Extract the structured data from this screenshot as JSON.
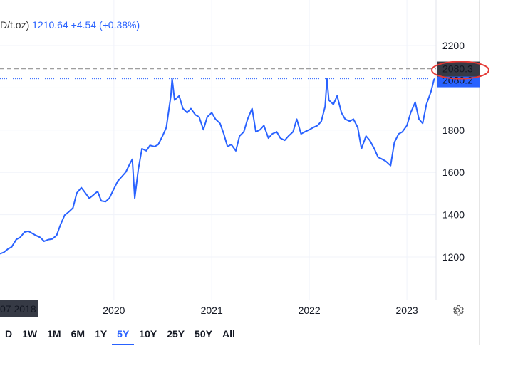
{
  "legend": {
    "symbol_suffix": "D/t.oz)",
    "price": "1210.64",
    "change": "+4.54 (+0.38%)"
  },
  "price_labels": {
    "reference_line_value": "2080.3",
    "last_value": "2080.2",
    "hover_date": "07 2018"
  },
  "range_buttons": [
    "D",
    "1W",
    "1M",
    "6M",
    "1Y",
    "5Y",
    "10Y",
    "25Y",
    "50Y",
    "All"
  ],
  "active_range": "5Y",
  "colors": {
    "series": "#2962ff",
    "reference_line": "#9e9e9e",
    "highlight_circle": "#e53935",
    "label_dark": "#363a45"
  },
  "chart_data": {
    "type": "line",
    "title": "",
    "xlabel": "",
    "ylabel": "",
    "xlim": [
      "2018-11-01",
      "2023-04-20"
    ],
    "ylim": [
      1120,
      2260
    ],
    "x_ticks": [
      "2020",
      "2021",
      "2022",
      "2023"
    ],
    "y_ticks": [
      "1200",
      "1400",
      "1600",
      "1800",
      "2200"
    ],
    "reference_value": 2080.3,
    "last_value": 2080.2,
    "series": [
      {
        "x": [
          "2018-11-01",
          "2018-11-15",
          "2018-12-01",
          "2018-12-15",
          "2019-01-01",
          "2019-01-15",
          "2019-02-01",
          "2019-02-15",
          "2019-03-01",
          "2019-03-15",
          "2019-04-01",
          "2019-04-15",
          "2019-05-01",
          "2019-05-15",
          "2019-06-01",
          "2019-06-15",
          "2019-07-01",
          "2019-07-15",
          "2019-08-01",
          "2019-08-15",
          "2019-09-01",
          "2019-09-15",
          "2019-10-01",
          "2019-10-15",
          "2019-11-01",
          "2019-11-15",
          "2019-12-01",
          "2019-12-15",
          "2020-01-01",
          "2020-01-15",
          "2020-02-01",
          "2020-02-15",
          "2020-03-01",
          "2020-03-10",
          "2020-03-19",
          "2020-04-01",
          "2020-04-15",
          "2020-05-01",
          "2020-05-15",
          "2020-06-01",
          "2020-06-15",
          "2020-07-01",
          "2020-07-15",
          "2020-08-01",
          "2020-08-06",
          "2020-08-15",
          "2020-09-01",
          "2020-09-15",
          "2020-10-01",
          "2020-10-15",
          "2020-11-01",
          "2020-11-15",
          "2020-12-01",
          "2020-12-15",
          "2021-01-01",
          "2021-01-15",
          "2021-02-01",
          "2021-02-15",
          "2021-03-01",
          "2021-03-15",
          "2021-04-01",
          "2021-04-15",
          "2021-05-01",
          "2021-05-15",
          "2021-06-01",
          "2021-06-15",
          "2021-07-01",
          "2021-07-15",
          "2021-08-01",
          "2021-08-15",
          "2021-09-01",
          "2021-09-15",
          "2021-10-01",
          "2021-10-15",
          "2021-11-01",
          "2021-11-15",
          "2021-12-01",
          "2021-12-15",
          "2022-01-01",
          "2022-01-15",
          "2022-02-01",
          "2022-02-15",
          "2022-03-01",
          "2022-03-08",
          "2022-03-15",
          "2022-04-01",
          "2022-04-15",
          "2022-05-01",
          "2022-05-15",
          "2022-06-01",
          "2022-06-15",
          "2022-07-01",
          "2022-07-15",
          "2022-08-01",
          "2022-08-15",
          "2022-09-01",
          "2022-09-15",
          "2022-10-01",
          "2022-10-15",
          "2022-11-01",
          "2022-11-15",
          "2022-12-01",
          "2022-12-15",
          "2023-01-01",
          "2023-01-15",
          "2023-02-01",
          "2023-02-15",
          "2023-03-01",
          "2023-03-15",
          "2023-04-01",
          "2023-04-13"
        ],
        "y": [
          1215,
          1222,
          1238,
          1248,
          1283,
          1292,
          1318,
          1322,
          1312,
          1302,
          1292,
          1274,
          1282,
          1285,
          1302,
          1352,
          1398,
          1412,
          1432,
          1502,
          1528,
          1505,
          1477,
          1492,
          1510,
          1465,
          1462,
          1478,
          1522,
          1558,
          1582,
          1602,
          1642,
          1662,
          1478,
          1612,
          1712,
          1702,
          1728,
          1722,
          1732,
          1772,
          1812,
          1962,
          2042,
          1942,
          1962,
          1902,
          1882,
          1902,
          1872,
          1862,
          1802,
          1862,
          1882,
          1852,
          1832,
          1782,
          1722,
          1732,
          1702,
          1772,
          1792,
          1852,
          1902,
          1792,
          1802,
          1822,
          1762,
          1782,
          1792,
          1762,
          1752,
          1772,
          1792,
          1852,
          1782,
          1792,
          1802,
          1812,
          1822,
          1842,
          1912,
          2042,
          1942,
          1922,
          1962,
          1882,
          1852,
          1842,
          1852,
          1812,
          1712,
          1772,
          1752,
          1712,
          1672,
          1662,
          1652,
          1632,
          1742,
          1782,
          1792,
          1822,
          1882,
          1932,
          1852,
          1832,
          1922,
          1982,
          2042
        ]
      }
    ]
  }
}
